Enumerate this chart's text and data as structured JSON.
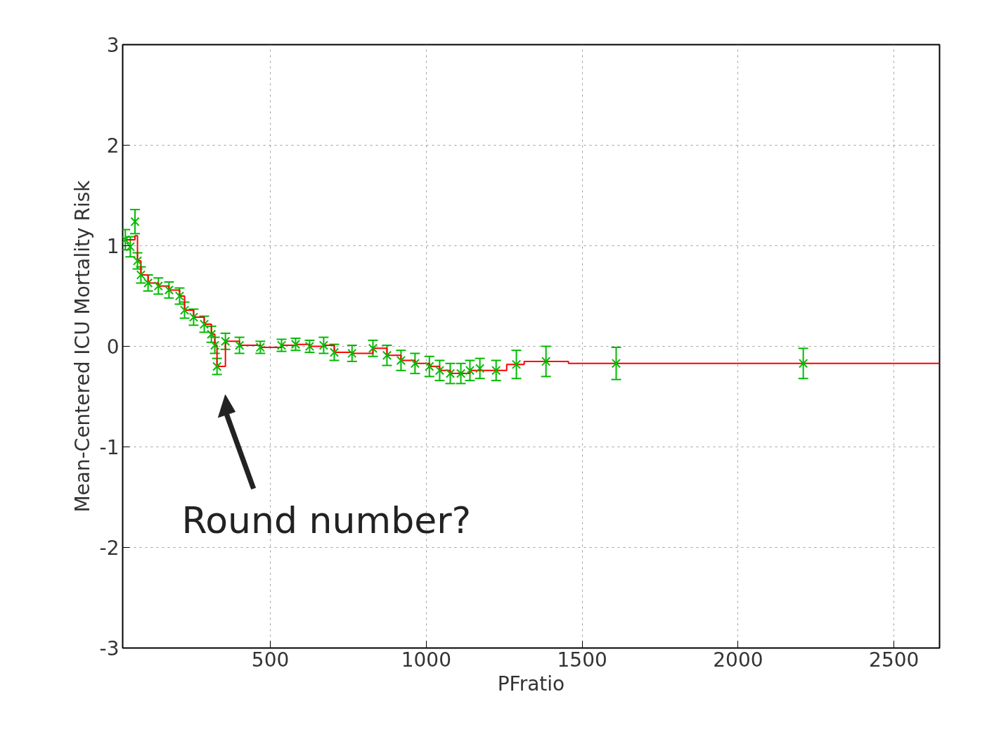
{
  "chart_data": {
    "type": "scatter",
    "xlabel": "PFratio",
    "ylabel": "Mean-Centered ICU Mortality Risk",
    "xlim": [
      26.5,
      2646
    ],
    "ylim": [
      -3,
      3
    ],
    "xticks": [
      500,
      1000,
      1500,
      2000,
      2500
    ],
    "yticks": [
      -3,
      -2,
      -1,
      0,
      1,
      2,
      3
    ],
    "grid": true,
    "series": [
      {
        "type": "step",
        "color": "#ff0000",
        "x": [
          35,
          66,
          74,
          85,
          108,
          141,
          175,
          209,
          225,
          254,
          288,
          311,
          322,
          329,
          356,
          401,
          468,
          536,
          581,
          626,
          671,
          705,
          762,
          829,
          874,
          919,
          964,
          1010,
          1043,
          1077,
          1111,
          1140,
          1172,
          1258,
          1314,
          1456,
          2646
        ],
        "values": [
          1.06,
          1.1,
          0.85,
          0.71,
          0.63,
          0.6,
          0.56,
          0.5,
          0.36,
          0.29,
          0.22,
          0.12,
          0.01,
          -0.2,
          0.05,
          0.01,
          -0.01,
          0.01,
          0.02,
          0.0,
          0.01,
          -0.06,
          -0.07,
          -0.02,
          -0.09,
          -0.14,
          -0.17,
          -0.2,
          -0.24,
          -0.27,
          -0.27,
          -0.24,
          -0.24,
          -0.18,
          -0.15,
          -0.17,
          -0.17
        ]
      },
      {
        "marker": "cross",
        "color": "#00bb00",
        "x": [
          35,
          51,
          66,
          74,
          85,
          108,
          141,
          175,
          209,
          225,
          254,
          288,
          311,
          322,
          329,
          356,
          401,
          468,
          536,
          581,
          626,
          671,
          705,
          762,
          829,
          874,
          919,
          964,
          1010,
          1043,
          1077,
          1111,
          1140,
          1172,
          1224,
          1289,
          1384,
          1609,
          2209
        ],
        "values": [
          1.06,
          0.99,
          1.24,
          0.85,
          0.71,
          0.63,
          0.6,
          0.56,
          0.5,
          0.36,
          0.29,
          0.22,
          0.12,
          0.01,
          -0.2,
          0.05,
          0.01,
          -0.01,
          0.01,
          0.02,
          0.0,
          0.01,
          -0.06,
          -0.07,
          -0.02,
          -0.09,
          -0.14,
          -0.17,
          -0.2,
          -0.24,
          -0.27,
          -0.27,
          -0.24,
          -0.22,
          -0.24,
          -0.18,
          -0.15,
          -0.17,
          -0.17
        ],
        "errors": [
          0.1,
          0.1,
          0.12,
          0.08,
          0.08,
          0.08,
          0.08,
          0.08,
          0.08,
          0.08,
          0.08,
          0.08,
          0.08,
          0.08,
          0.08,
          0.08,
          0.08,
          0.06,
          0.06,
          0.06,
          0.06,
          0.08,
          0.08,
          0.08,
          0.08,
          0.1,
          0.1,
          0.1,
          0.1,
          0.1,
          0.1,
          0.1,
          0.1,
          0.1,
          0.1,
          0.14,
          0.15,
          0.16,
          0.15
        ]
      }
    ],
    "annotations": [
      "Round number?"
    ]
  }
}
